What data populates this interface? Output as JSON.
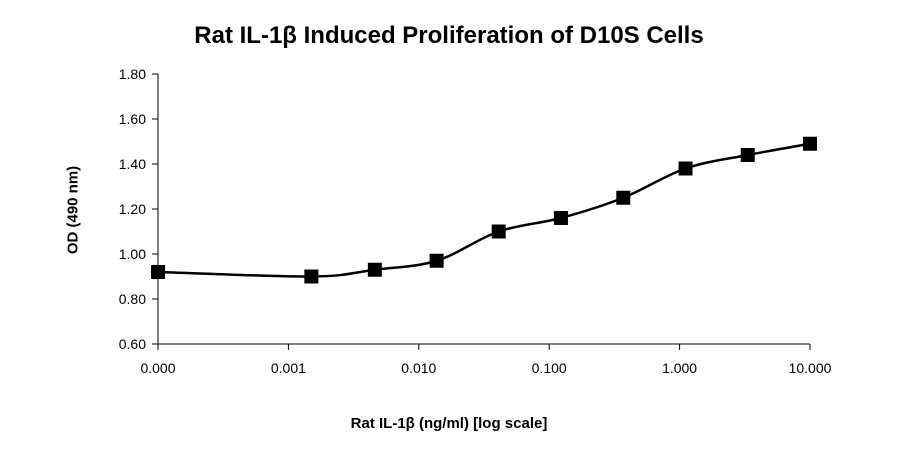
{
  "chart_data": {
    "type": "line",
    "title": "Rat IL-1β Induced Proliferation of D10S Cells",
    "xlabel": "Rat IL-1β (ng/ml) [log scale]",
    "ylabel": "OD (490 nm)",
    "x_scale": "log",
    "x_tick_labels": [
      "0.000",
      "0.001",
      "0.010",
      "0.100",
      "1.000",
      "10.000"
    ],
    "x_ticks": [
      0.0001,
      0.001,
      0.01,
      0.1,
      1,
      10
    ],
    "y_tick_labels": [
      "0.60",
      "0.80",
      "1.00",
      "1.20",
      "1.40",
      "1.60",
      "1.80"
    ],
    "ylim": [
      0.6,
      1.8
    ],
    "xlim": [
      0.0001,
      10
    ],
    "grid": false,
    "legend": "none",
    "marker": "square",
    "line_color": "#000000",
    "series": [
      {
        "x": [
          0.0001,
          0.0015,
          0.0046,
          0.0137,
          0.041,
          0.123,
          0.37,
          1.11,
          3.33,
          10
        ],
        "y": [
          0.92,
          0.9,
          0.93,
          0.97,
          1.1,
          1.16,
          1.25,
          1.38,
          1.44,
          1.49
        ]
      }
    ]
  }
}
